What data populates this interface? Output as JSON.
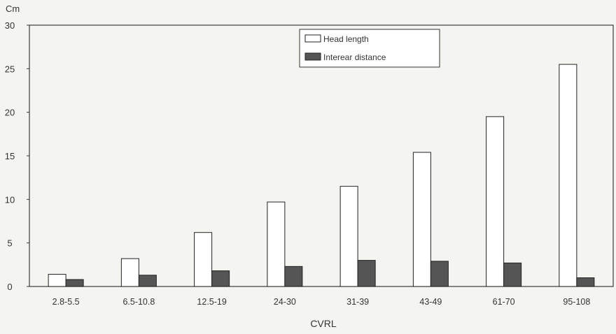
{
  "chart_data": {
    "type": "bar",
    "title": "",
    "ylabel": "Cm",
    "xlabel": "CVRL",
    "ylim": [
      0,
      30
    ],
    "yticks": [
      0,
      5,
      10,
      15,
      20,
      25,
      30
    ],
    "grid": false,
    "legend_position": "top-center",
    "categories": [
      "2.8-5.5",
      "6.5-10.8",
      "12.5-19",
      "24-30",
      "31-39",
      "43-49",
      "61-70",
      "95-108"
    ],
    "series": [
      {
        "name": "Head length",
        "values": [
          1.4,
          3.2,
          6.2,
          9.7,
          11.5,
          15.4,
          19.5,
          25.5
        ],
        "color": "#ffffff"
      },
      {
        "name": "Interear distance",
        "values": [
          0.8,
          1.3,
          1.8,
          2.3,
          3.0,
          2.9,
          2.7,
          1.0
        ],
        "color": "#555555"
      }
    ]
  }
}
